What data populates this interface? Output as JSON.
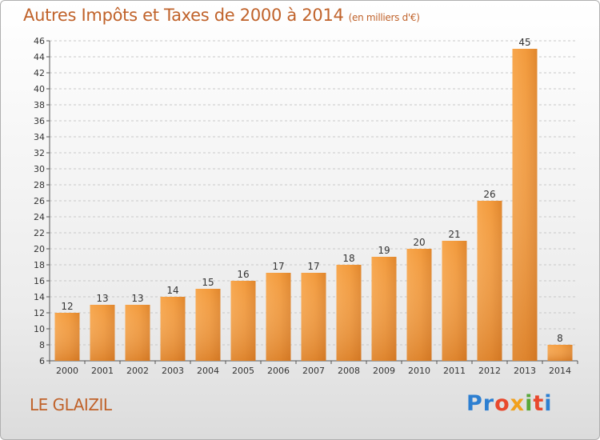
{
  "header": {
    "title": "Autres Impôts et Taxes de 2000 à 2014",
    "unit": "(en milliers d'€)"
  },
  "footer": {
    "place": "LE GLAIZIL",
    "logo": [
      "Pr",
      "o",
      "x",
      "i",
      "t",
      "i"
    ]
  },
  "colors": {
    "bar_light": "#f7a64c",
    "bar_dark": "#d2731f",
    "title": "#c0622a"
  },
  "chart_data": {
    "type": "bar",
    "title": "Autres Impôts et Taxes de 2000 à 2014",
    "subtitle": "(en milliers d'€)",
    "categories": [
      "2000",
      "2001",
      "2002",
      "2003",
      "2004",
      "2005",
      "2006",
      "2007",
      "2008",
      "2009",
      "2010",
      "2011",
      "2012",
      "2013",
      "2014"
    ],
    "values": [
      12,
      13,
      13,
      14,
      15,
      16,
      17,
      17,
      18,
      19,
      20,
      21,
      26,
      45,
      8
    ],
    "ylim": [
      6,
      46
    ],
    "ytick_step": 2,
    "grid": "horizontal-dashed"
  }
}
